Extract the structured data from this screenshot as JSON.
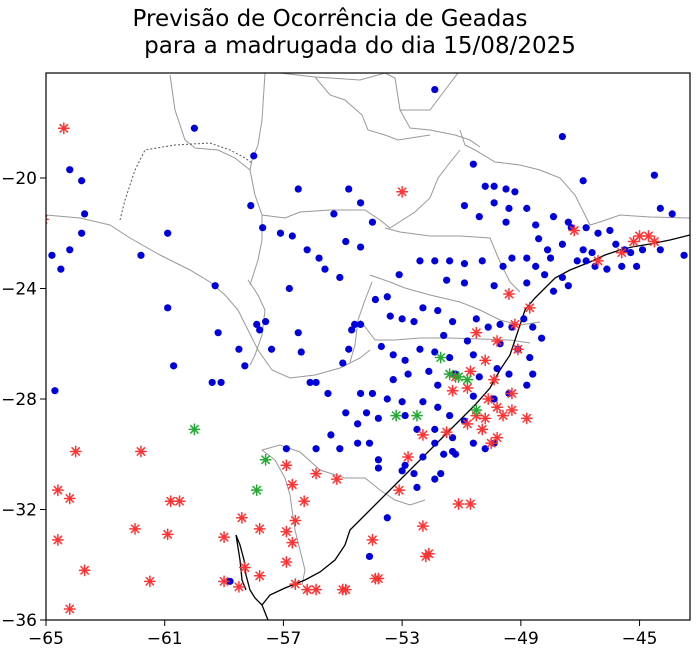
{
  "title": {
    "line1": "Previsão de Ocorrência de Geadas",
    "line2": "para a madrugada do dia 15/08/2025"
  },
  "colors": {
    "blue_dot": "#0000dd",
    "red_asterisk": "#ff3333",
    "green_asterisk": "#22aa33",
    "border": "#999999",
    "coast": "#000000"
  },
  "chart_data": {
    "type": "scatter",
    "xlim": [
      -65,
      -43.3
    ],
    "ylim": [
      -36,
      -16.2
    ],
    "xticks": [
      -65,
      -61,
      -57,
      -53,
      -49,
      -45
    ],
    "yticks": [
      -20,
      -24,
      -28,
      -32,
      -36
    ],
    "xtick_labels": [
      "−65",
      "−61",
      "−57",
      "−53",
      "−49",
      "−45"
    ],
    "ytick_labels": [
      "−20",
      "−24",
      "−28",
      "−32",
      "−36"
    ],
    "series": [
      {
        "marker": "dot",
        "color": "#0000dd",
        "points": [
          [
            -60,
            -18.2
          ],
          [
            -58,
            -19.2
          ],
          [
            -64.2,
            -19.7
          ],
          [
            -63.8,
            -20.1
          ],
          [
            -63.7,
            -21.3
          ],
          [
            -63.8,
            -22
          ],
          [
            -64.2,
            -22.6
          ],
          [
            -64.8,
            -22.8
          ],
          [
            -64.5,
            -23.3
          ],
          [
            -61.8,
            -22.8
          ],
          [
            -60.9,
            -22
          ],
          [
            -60.9,
            -24.7
          ],
          [
            -60.7,
            -26.8
          ],
          [
            -59.3,
            -23.9
          ],
          [
            -59.2,
            -25.6
          ],
          [
            -58.5,
            -26.2
          ],
          [
            -58.3,
            -26.8
          ],
          [
            -59.4,
            -27.4
          ],
          [
            -59.1,
            -27.4
          ],
          [
            -64.7,
            -27.7
          ],
          [
            -56.5,
            -20.4
          ],
          [
            -55.3,
            -21.3
          ],
          [
            -54.8,
            -20.4
          ],
          [
            -54.4,
            -20.9
          ],
          [
            -56.2,
            -22.6
          ],
          [
            -55.8,
            -22.9
          ],
          [
            -55.6,
            -23.3
          ],
          [
            -54.9,
            -22.3
          ],
          [
            -54.4,
            -22.5
          ],
          [
            -54,
            -21.6
          ],
          [
            -55.1,
            -23.6
          ],
          [
            -57.7,
            -21.8
          ],
          [
            -57.1,
            -22
          ],
          [
            -56.7,
            -22.1
          ],
          [
            -58.1,
            -21
          ],
          [
            -56.8,
            -24
          ],
          [
            -57.6,
            -25.2
          ],
          [
            -57.9,
            -25.3
          ],
          [
            -57.8,
            -25.5
          ],
          [
            -56.5,
            -25.6
          ],
          [
            -56.4,
            -26.3
          ],
          [
            -57.4,
            -26.2
          ],
          [
            -56.1,
            -27.4
          ],
          [
            -55.9,
            -27.4
          ],
          [
            -55.5,
            -27.8
          ],
          [
            -55,
            -26.7
          ],
          [
            -54.8,
            -26.2
          ],
          [
            -54.7,
            -25.5
          ],
          [
            -54.6,
            -25.3
          ],
          [
            -54.4,
            -25.3
          ],
          [
            -53.9,
            -24.4
          ],
          [
            -53.5,
            -24.3
          ],
          [
            -53.4,
            -25
          ],
          [
            -53,
            -25.1
          ],
          [
            -52.6,
            -25.2
          ],
          [
            -52.3,
            -24.7
          ],
          [
            -51.9,
            -16.8
          ],
          [
            -50.6,
            -19.5
          ],
          [
            -50.2,
            -20.3
          ],
          [
            -49.9,
            -20.3
          ],
          [
            -49.5,
            -20.4
          ],
          [
            -49.2,
            -20.5
          ],
          [
            -49.9,
            -20.9
          ],
          [
            -50.9,
            -21
          ],
          [
            -49.4,
            -21.1
          ],
          [
            -48.8,
            -21.1
          ],
          [
            -50.4,
            -21.4
          ],
          [
            -49.5,
            -21.6
          ],
          [
            -48.5,
            -21.7
          ],
          [
            -47.9,
            -21.4
          ],
          [
            -47.4,
            -21.6
          ],
          [
            -47.6,
            -18.5
          ],
          [
            -46.9,
            -20.1
          ],
          [
            -44.5,
            -19.9
          ],
          [
            -44.3,
            -21.1
          ],
          [
            -43.9,
            -21.3
          ],
          [
            -43.5,
            -22.8
          ],
          [
            -47.3,
            -21.8
          ],
          [
            -46.8,
            -21.8
          ],
          [
            -46.4,
            -22
          ],
          [
            -46,
            -21.9
          ],
          [
            -47.6,
            -22.4
          ],
          [
            -46.9,
            -22.6
          ],
          [
            -46.6,
            -22.7
          ],
          [
            -45.8,
            -22.4
          ],
          [
            -45.5,
            -22.6
          ],
          [
            -45.3,
            -22.7
          ],
          [
            -44.9,
            -22.6
          ],
          [
            -44.3,
            -22.6
          ],
          [
            -47.1,
            -23
          ],
          [
            -46.8,
            -23
          ],
          [
            -46.5,
            -23.2
          ],
          [
            -46.1,
            -23.3
          ],
          [
            -45.6,
            -23.2
          ],
          [
            -45.1,
            -23.2
          ],
          [
            -48.4,
            -22.2
          ],
          [
            -48.1,
            -22.6
          ],
          [
            -48,
            -22.9
          ],
          [
            -48.8,
            -22.9
          ],
          [
            -49.3,
            -22.9
          ],
          [
            -49.6,
            -23.2
          ],
          [
            -50.3,
            -23
          ],
          [
            -50.9,
            -23.1
          ],
          [
            -51.4,
            -23
          ],
          [
            -51.9,
            -23
          ],
          [
            -52.4,
            -23
          ],
          [
            -53.1,
            -23.5
          ],
          [
            -51.5,
            -23.7
          ],
          [
            -50.9,
            -23.8
          ],
          [
            -49.9,
            -23.9
          ],
          [
            -48.8,
            -23.8
          ],
          [
            -48.5,
            -23.2
          ],
          [
            -48.2,
            -23.5
          ],
          [
            -47.6,
            -23.6
          ],
          [
            -47.9,
            -24.1
          ],
          [
            -47.4,
            -23.9
          ],
          [
            -51.8,
            -24.8
          ],
          [
            -51.3,
            -25.2
          ],
          [
            -50.5,
            -25.1
          ],
          [
            -50.1,
            -25.4
          ],
          [
            -49.7,
            -25.3
          ],
          [
            -49.3,
            -25.4
          ],
          [
            -48.9,
            -25.1
          ],
          [
            -48.6,
            -25.4
          ],
          [
            -48.3,
            -25.8
          ],
          [
            -51.6,
            -25.7
          ],
          [
            -50.8,
            -25.9
          ],
          [
            -49.7,
            -26
          ],
          [
            -49.1,
            -26.2
          ],
          [
            -48.7,
            -26.5
          ],
          [
            -53.7,
            -26.1
          ],
          [
            -53.3,
            -26.4
          ],
          [
            -52.9,
            -26.6
          ],
          [
            -52.4,
            -26.2
          ],
          [
            -51.9,
            -26.3
          ],
          [
            -51.4,
            -26.5
          ],
          [
            -50.6,
            -26.4
          ],
          [
            -49.8,
            -26.9
          ],
          [
            -49.4,
            -27.1
          ],
          [
            -48.8,
            -27.5
          ],
          [
            -48.6,
            -27.1
          ],
          [
            -49.4,
            -27.8
          ],
          [
            -53.3,
            -27.3
          ],
          [
            -52.8,
            -27.1
          ],
          [
            -52.1,
            -27
          ],
          [
            -51.2,
            -27.1
          ],
          [
            -50.4,
            -27.2
          ],
          [
            -51.8,
            -27.5
          ],
          [
            -50.6,
            -27.9
          ],
          [
            -49.9,
            -28
          ],
          [
            -54.4,
            -27.8
          ],
          [
            -54,
            -27.8
          ],
          [
            -53.5,
            -28
          ],
          [
            -53,
            -28.1
          ],
          [
            -52.3,
            -28.1
          ],
          [
            -51.8,
            -28.3
          ],
          [
            -51.4,
            -28.6
          ],
          [
            -50.9,
            -28.8
          ],
          [
            -54.9,
            -28.5
          ],
          [
            -54.5,
            -28.9
          ],
          [
            -54.2,
            -28.5
          ],
          [
            -53.8,
            -28.7
          ],
          [
            -52.9,
            -28.6
          ],
          [
            -52.5,
            -29.1
          ],
          [
            -51.9,
            -29.1
          ],
          [
            -51.3,
            -29.4
          ],
          [
            -50.6,
            -29.6
          ],
          [
            -50.2,
            -29.8
          ],
          [
            -49.9,
            -29.6
          ],
          [
            -56.9,
            -29.8
          ],
          [
            -55.9,
            -29.8
          ],
          [
            -55.4,
            -29.3
          ],
          [
            -55.1,
            -29.8
          ],
          [
            -54.5,
            -29.6
          ],
          [
            -54.1,
            -29.6
          ],
          [
            -53.8,
            -30.2
          ],
          [
            -53.8,
            -30.5
          ],
          [
            -52.9,
            -30.4
          ],
          [
            -52.3,
            -30.1
          ],
          [
            -51.6,
            -30
          ],
          [
            -51.2,
            -30
          ],
          [
            -51.9,
            -29.6
          ],
          [
            -51.3,
            -29.9
          ],
          [
            -51.9,
            -30.9
          ],
          [
            -52.5,
            -31.2
          ],
          [
            -53,
            -30.6
          ],
          [
            -51.7,
            -30.7
          ],
          [
            -52.6,
            -30.7
          ],
          [
            -58.8,
            -34.6
          ],
          [
            -54.1,
            -33.7
          ],
          [
            -53.5,
            -32.3
          ]
        ]
      },
      {
        "marker": "asterisk",
        "color": "#ff3333",
        "points": [
          [
            -64.4,
            -18.2
          ],
          [
            -65.1,
            -21.5
          ],
          [
            -53,
            -20.5
          ],
          [
            -64,
            -29.9
          ],
          [
            -61.8,
            -29.9
          ],
          [
            -64.6,
            -31.3
          ],
          [
            -64.2,
            -31.6
          ],
          [
            -64.6,
            -33.1
          ],
          [
            -63.7,
            -34.2
          ],
          [
            -62,
            -32.7
          ],
          [
            -61.5,
            -34.6
          ],
          [
            -60.9,
            -32.9
          ],
          [
            -60.8,
            -31.7
          ],
          [
            -60.5,
            -31.7
          ],
          [
            -64.2,
            -35.6
          ],
          [
            -59,
            -33
          ],
          [
            -58.4,
            -32.3
          ],
          [
            -58.3,
            -34.1
          ],
          [
            -59,
            -34.6
          ],
          [
            -58.5,
            -34.8
          ],
          [
            -57.8,
            -34.4
          ],
          [
            -57.8,
            -32.7
          ],
          [
            -56.9,
            -30.4
          ],
          [
            -56.7,
            -31.1
          ],
          [
            -56.3,
            -31.7
          ],
          [
            -56.6,
            -32.4
          ],
          [
            -56.9,
            -32.8
          ],
          [
            -56.7,
            -33.2
          ],
          [
            -56.9,
            -33.9
          ],
          [
            -56.6,
            -34.7
          ],
          [
            -56.2,
            -34.9
          ],
          [
            -55.9,
            -34.9
          ],
          [
            -55,
            -34.9
          ],
          [
            -54.9,
            -34.9
          ],
          [
            -55.9,
            -30.7
          ],
          [
            -55.2,
            -30.9
          ],
          [
            -54,
            -33.1
          ],
          [
            -53.9,
            -34.5
          ],
          [
            -53.8,
            -34.5
          ],
          [
            -53.1,
            -31.3
          ],
          [
            -52.3,
            -32.6
          ],
          [
            -52.2,
            -33.7
          ],
          [
            -52.1,
            -33.6
          ],
          [
            -51.1,
            -31.8
          ],
          [
            -50.7,
            -31.8
          ],
          [
            -49.4,
            -24.2
          ],
          [
            -48.7,
            -24.7
          ],
          [
            -49.2,
            -25.3
          ],
          [
            -50.5,
            -25.6
          ],
          [
            -49.8,
            -25.9
          ],
          [
            -49.1,
            -26.2
          ],
          [
            -50.2,
            -26.6
          ],
          [
            -49.9,
            -27.3
          ],
          [
            -49.3,
            -27.8
          ],
          [
            -50.7,
            -27
          ],
          [
            -51.2,
            -27.2
          ],
          [
            -50.8,
            -27.6
          ],
          [
            -51.3,
            -27.7
          ],
          [
            -50.1,
            -28
          ],
          [
            -49.8,
            -28.3
          ],
          [
            -50.5,
            -28.6
          ],
          [
            -50.2,
            -28.7
          ],
          [
            -49.6,
            -28.6
          ],
          [
            -48.8,
            -28.7
          ],
          [
            -49.3,
            -28.4
          ],
          [
            -50.8,
            -28.9
          ],
          [
            -50.3,
            -29.1
          ],
          [
            -49.8,
            -29.4
          ],
          [
            -50,
            -29.6
          ],
          [
            -51.5,
            -29.2
          ],
          [
            -52.3,
            -29.3
          ],
          [
            -52.8,
            -30.1
          ],
          [
            -47.2,
            -21.9
          ],
          [
            -46.4,
            -23
          ],
          [
            -45.6,
            -22.7
          ],
          [
            -45.2,
            -22.3
          ],
          [
            -45,
            -22.1
          ],
          [
            -44.7,
            -22.1
          ],
          [
            -44.5,
            -22.3
          ]
        ]
      },
      {
        "marker": "asterisk",
        "color": "#22aa33",
        "points": [
          [
            -60,
            -29.1
          ],
          [
            -57.6,
            -30.2
          ],
          [
            -57.9,
            -31.3
          ],
          [
            -53.2,
            -28.6
          ],
          [
            -52.5,
            -28.6
          ],
          [
            -50.5,
            -28.4
          ],
          [
            -51.4,
            -27.1
          ],
          [
            -51.1,
            -27.2
          ],
          [
            -50.8,
            -27.3
          ],
          [
            -51.7,
            -26.5
          ]
        ]
      }
    ]
  }
}
